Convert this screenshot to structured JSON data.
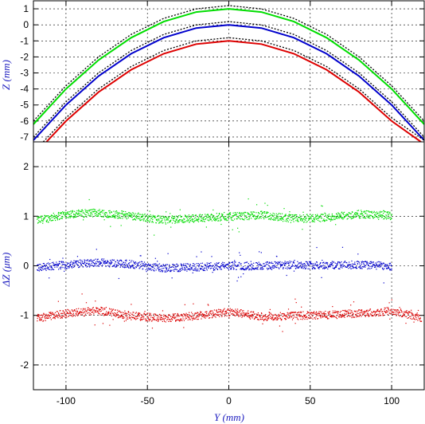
{
  "chart_data": [
    {
      "type": "line",
      "panel": "top",
      "ylabel": "Z (mm)",
      "xlim": [
        -120,
        120
      ],
      "ylim": [
        -7.3,
        1.5
      ],
      "x_ticks": [
        -100,
        -50,
        0,
        50,
        100
      ],
      "y_ticks": [
        1,
        0,
        -1,
        -2,
        -3,
        -4,
        -5,
        -6,
        -7
      ],
      "y_tick_labels": [
        "1",
        "0",
        "-1",
        "-2",
        "-3",
        "-4",
        "-5",
        "-6",
        "-7"
      ],
      "grid": true,
      "series": [
        {
          "color": "#00dd00",
          "x": [
            -120,
            -100,
            -80,
            -60,
            -40,
            -20,
            0,
            20,
            40,
            60,
            80,
            100,
            120
          ],
          "y": [
            -6.2,
            -4.0,
            -2.2,
            -0.8,
            0.2,
            0.8,
            1.0,
            0.8,
            0.2,
            -0.8,
            -2.2,
            -4.0,
            -6.2
          ]
        },
        {
          "color": "#0000cc",
          "x": [
            -120,
            -100,
            -80,
            -60,
            -40,
            -20,
            0,
            20,
            40,
            60,
            80,
            100,
            120
          ],
          "y": [
            -7.2,
            -5.0,
            -3.2,
            -1.8,
            -0.8,
            -0.2,
            0.0,
            -0.2,
            -0.8,
            -1.8,
            -3.2,
            -5.0,
            -7.2
          ]
        },
        {
          "color": "#dd0000",
          "x": [
            -112,
            -100,
            -80,
            -60,
            -40,
            -20,
            0,
            20,
            40,
            60,
            80,
            100,
            118
          ],
          "y": [
            -7.3,
            -6.0,
            -4.2,
            -2.8,
            -1.8,
            -1.2,
            -1.0,
            -1.2,
            -1.8,
            -2.8,
            -4.2,
            -6.0,
            -7.3
          ]
        },
        {
          "color": "#000000",
          "style": "dotted",
          "x": [
            -120,
            -100,
            -80,
            -60,
            -40,
            -20,
            0,
            20,
            40,
            60,
            80,
            100,
            120
          ],
          "y": [
            -6.0,
            -3.8,
            -2.0,
            -0.6,
            0.4,
            1.0,
            1.2,
            1.0,
            0.4,
            -0.6,
            -2.0,
            -3.8,
            -6.0
          ]
        },
        {
          "color": "#000000",
          "style": "dotted",
          "x": [
            -120,
            -100,
            -80,
            -60,
            -40,
            -20,
            0,
            20,
            40,
            60,
            80,
            100,
            120
          ],
          "y": [
            -7.0,
            -4.8,
            -3.0,
            -1.6,
            -0.6,
            0.0,
            0.2,
            0.0,
            -0.6,
            -1.6,
            -3.0,
            -4.8,
            -7.0
          ]
        },
        {
          "color": "#000000",
          "style": "dotted",
          "x": [
            -114,
            -100,
            -80,
            -60,
            -40,
            -20,
            0,
            20,
            40,
            60,
            80,
            100,
            120
          ],
          "y": [
            -7.3,
            -5.8,
            -4.0,
            -2.6,
            -1.6,
            -1.0,
            -0.8,
            -1.0,
            -1.6,
            -2.6,
            -4.0,
            -5.8,
            -7.2
          ]
        }
      ]
    },
    {
      "type": "scatter",
      "panel": "bottom",
      "xlabel": "Y (mm)",
      "ylabel": "ΔZ (μm)",
      "xlim": [
        -120,
        120
      ],
      "ylim": [
        -2.5,
        2.5
      ],
      "x_ticks": [
        -100,
        -50,
        0,
        50,
        100
      ],
      "x_tick_labels": [
        "-100",
        "-50",
        "0",
        "50",
        "100"
      ],
      "y_ticks": [
        2,
        1,
        0,
        -1,
        -2
      ],
      "y_tick_labels": [
        "2",
        "1",
        "0",
        "-1",
        "-2"
      ],
      "grid": true,
      "series": [
        {
          "color": "#00dd00",
          "x": [
            -118,
            -100,
            -80,
            -60,
            -40,
            -20,
            0,
            20,
            40,
            60,
            80,
            100
          ],
          "y": [
            0.92,
            1.05,
            1.08,
            1.02,
            0.93,
            0.97,
            1.0,
            1.03,
            0.96,
            0.98,
            1.05,
            1.02
          ]
        },
        {
          "color": "#0000cc",
          "x": [
            -118,
            -100,
            -80,
            -60,
            -40,
            -20,
            0,
            20,
            40,
            60,
            80,
            100
          ],
          "y": [
            -0.02,
            0.03,
            0.08,
            0.04,
            -0.04,
            -0.02,
            0.01,
            0.0,
            0.03,
            0.02,
            0.03,
            0.0
          ]
        },
        {
          "color": "#dd0000",
          "x": [
            -118,
            -100,
            -80,
            -60,
            -40,
            -20,
            0,
            20,
            40,
            60,
            80,
            100,
            118
          ],
          "y": [
            -1.05,
            -0.95,
            -0.9,
            -1.0,
            -1.05,
            -1.0,
            -0.92,
            -1.02,
            -1.0,
            -0.98,
            -0.95,
            -0.9,
            -1.04
          ]
        }
      ]
    }
  ]
}
